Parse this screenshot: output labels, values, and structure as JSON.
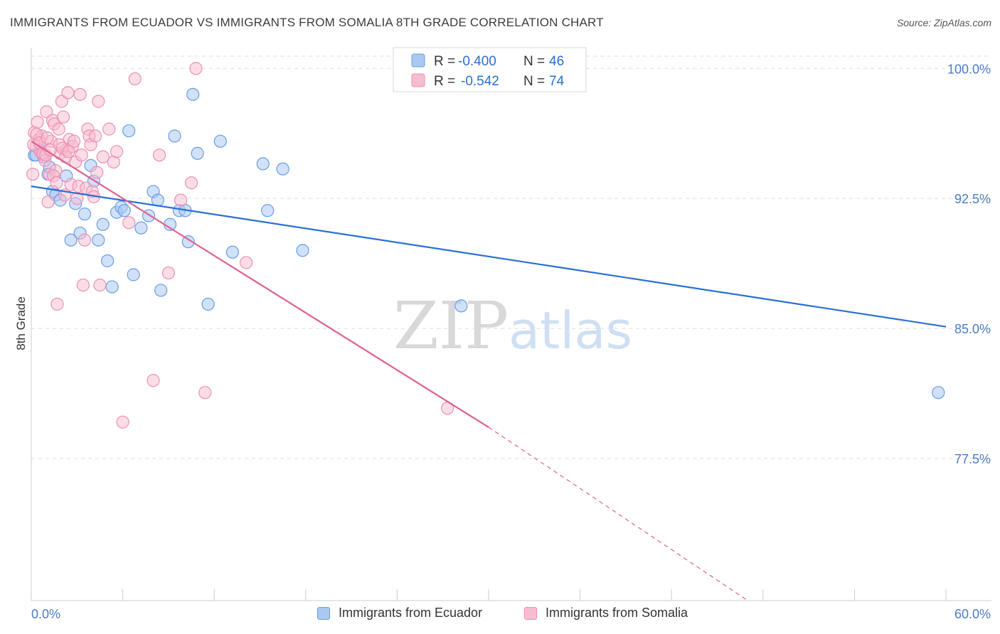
{
  "title": "IMMIGRANTS FROM ECUADOR VS IMMIGRANTS FROM SOMALIA 8TH GRADE CORRELATION CHART",
  "source": "Source: ZipAtlas.com",
  "watermark": {
    "zip": "ZIP",
    "atlas": "atlas"
  },
  "colors": {
    "ecuador_fill": "#a9c8f2",
    "ecuador_stroke": "#6a9ee6",
    "ecuador_line": "#2a6fd1",
    "somalia_fill": "#f7bcd0",
    "somalia_stroke": "#ee8fb1",
    "somalia_line": "#e0608e",
    "axis_text": "#4a7cc9",
    "grid": "#dddddd"
  },
  "legend_box": {
    "rows": [
      {
        "r_label": "R =",
        "r_value": "-0.400",
        "n_label": "N =",
        "n_value": "46"
      },
      {
        "r_label": "R =",
        "r_value": "-0.542",
        "n_label": "N =",
        "n_value": "74"
      }
    ]
  },
  "legend_bottom": [
    "Immigrants from Ecuador",
    "Immigrants from Somalia"
  ],
  "chart_data": {
    "type": "scatter",
    "title": "IMMIGRANTS FROM ECUADOR VS IMMIGRANTS FROM SOMALIA 8TH GRADE CORRELATION CHART",
    "xlabel": "",
    "ylabel": "8th Grade",
    "xlim": [
      0,
      60
    ],
    "ylim": [
      69.3,
      101.2
    ],
    "x_tick_labels": [
      "0.0%",
      "60.0%"
    ],
    "y_ticks": [
      77.5,
      85.0,
      92.5,
      100.0
    ],
    "y_tick_labels": [
      "77.5%",
      "85.0%",
      "92.5%",
      "100.0%"
    ],
    "grid": true,
    "series": [
      {
        "name": "Immigrants from Ecuador",
        "R": -0.4,
        "N": 46,
        "trend": {
          "x": [
            0,
            60
          ],
          "y": [
            93.2,
            85.1
          ]
        },
        "points": [
          [
            0.2,
            95.0
          ],
          [
            0.6,
            95.3
          ],
          [
            0.8,
            94.9
          ],
          [
            1.1,
            93.9
          ],
          [
            1.2,
            94.3
          ],
          [
            1.4,
            92.9
          ],
          [
            1.6,
            92.7
          ],
          [
            1.9,
            92.4
          ],
          [
            2.3,
            93.8
          ],
          [
            2.6,
            90.1
          ],
          [
            2.9,
            92.2
          ],
          [
            3.2,
            90.5
          ],
          [
            3.5,
            91.6
          ],
          [
            3.9,
            94.4
          ],
          [
            4.1,
            93.5
          ],
          [
            4.4,
            90.1
          ],
          [
            4.7,
            91.0
          ],
          [
            5.0,
            88.9
          ],
          [
            5.3,
            87.4
          ],
          [
            5.6,
            91.7
          ],
          [
            5.9,
            92.0
          ],
          [
            6.1,
            91.8
          ],
          [
            6.4,
            96.4
          ],
          [
            6.7,
            88.1
          ],
          [
            7.2,
            90.8
          ],
          [
            7.7,
            91.5
          ],
          [
            8.0,
            92.9
          ],
          [
            8.3,
            92.4
          ],
          [
            8.5,
            87.2
          ],
          [
            9.1,
            91.0
          ],
          [
            9.4,
            96.1
          ],
          [
            9.7,
            91.8
          ],
          [
            10.1,
            91.8
          ],
          [
            10.3,
            90.0
          ],
          [
            10.6,
            98.5
          ],
          [
            10.9,
            95.1
          ],
          [
            11.6,
            86.4
          ],
          [
            12.4,
            95.8
          ],
          [
            13.2,
            89.4
          ],
          [
            15.2,
            94.5
          ],
          [
            15.5,
            91.8
          ],
          [
            16.5,
            94.2
          ],
          [
            17.8,
            89.5
          ],
          [
            28.2,
            86.3
          ],
          [
            59.5,
            81.3
          ],
          [
            0.3,
            95.0
          ]
        ]
      },
      {
        "name": "Immigrants from Somalia",
        "R": -0.542,
        "N": 74,
        "trend": {
          "x": [
            0,
            30
          ],
          "y": [
            95.8,
            79.3
          ]
        },
        "trend_dashed": {
          "x": [
            30,
            47
          ],
          "y": [
            79.3,
            69.3
          ]
        },
        "points": [
          [
            0.1,
            93.9
          ],
          [
            0.2,
            96.3
          ],
          [
            0.3,
            95.5
          ],
          [
            0.4,
            96.9
          ],
          [
            0.5,
            95.9
          ],
          [
            0.6,
            95.2
          ],
          [
            0.7,
            96.1
          ],
          [
            0.8,
            95.0
          ],
          [
            0.9,
            94.7
          ],
          [
            1.0,
            97.5
          ],
          [
            1.1,
            92.3
          ],
          [
            1.2,
            93.9
          ],
          [
            1.3,
            95.8
          ],
          [
            1.4,
            97.0
          ],
          [
            1.5,
            96.8
          ],
          [
            1.6,
            94.1
          ],
          [
            1.7,
            86.4
          ],
          [
            1.8,
            96.5
          ],
          [
            1.9,
            95.1
          ],
          [
            2.0,
            98.1
          ],
          [
            2.1,
            97.2
          ],
          [
            2.2,
            92.7
          ],
          [
            2.3,
            95.3
          ],
          [
            2.4,
            98.6
          ],
          [
            2.5,
            95.9
          ],
          [
            2.6,
            93.3
          ],
          [
            2.7,
            95.5
          ],
          [
            2.8,
            95.8
          ],
          [
            2.9,
            94.6
          ],
          [
            3.0,
            92.5
          ],
          [
            3.1,
            93.2
          ],
          [
            3.2,
            98.5
          ],
          [
            3.3,
            95.0
          ],
          [
            3.4,
            87.5
          ],
          [
            3.5,
            90.1
          ],
          [
            3.6,
            93.1
          ],
          [
            3.7,
            96.5
          ],
          [
            3.8,
            96.1
          ],
          [
            3.9,
            95.6
          ],
          [
            4.0,
            92.9
          ],
          [
            4.1,
            92.6
          ],
          [
            4.2,
            96.1
          ],
          [
            4.3,
            94.0
          ],
          [
            4.4,
            98.1
          ],
          [
            4.5,
            87.5
          ],
          [
            4.7,
            94.9
          ],
          [
            5.1,
            96.5
          ],
          [
            5.4,
            94.6
          ],
          [
            5.6,
            95.2
          ],
          [
            6.0,
            79.6
          ],
          [
            6.4,
            91.1
          ],
          [
            6.8,
            99.4
          ],
          [
            8.0,
            82.0
          ],
          [
            8.4,
            95.0
          ],
          [
            9.0,
            88.2
          ],
          [
            9.8,
            92.4
          ],
          [
            10.5,
            93.4
          ],
          [
            10.8,
            100.0
          ],
          [
            11.4,
            81.3
          ],
          [
            14.1,
            88.8
          ],
          [
            27.3,
            80.4
          ],
          [
            0.15,
            95.6
          ],
          [
            0.35,
            96.2
          ],
          [
            0.55,
            95.7
          ],
          [
            0.75,
            95.1
          ],
          [
            0.95,
            95.0
          ],
          [
            1.05,
            96.0
          ],
          [
            1.25,
            95.3
          ],
          [
            1.45,
            93.8
          ],
          [
            1.65,
            93.4
          ],
          [
            1.85,
            95.6
          ],
          [
            2.05,
            95.4
          ],
          [
            2.25,
            94.9
          ],
          [
            2.45,
            95.2
          ]
        ]
      }
    ]
  }
}
